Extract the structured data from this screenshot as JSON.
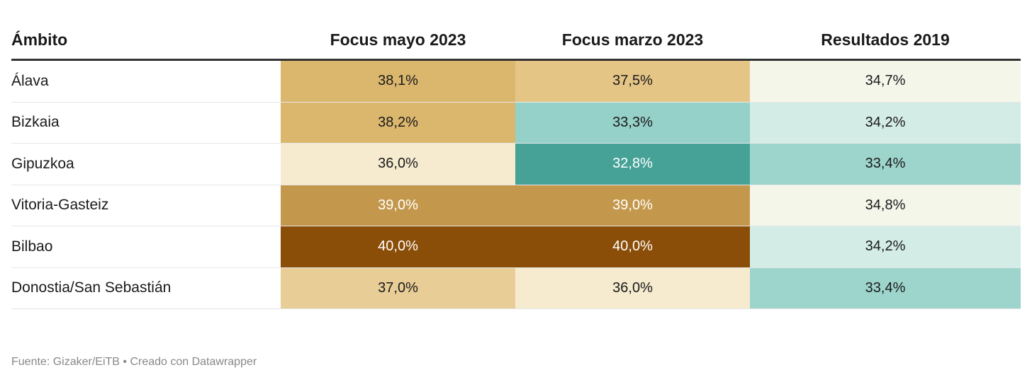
{
  "chart_data": {
    "type": "table",
    "columns": [
      "Ámbito",
      "Focus mayo 2023",
      "Focus marzo 2023",
      "Resultados 2019"
    ],
    "rows": [
      {
        "label": "Álava",
        "values": [
          "38,1%",
          "37,5%",
          "34,7%"
        ],
        "colors": [
          "#dbb76e",
          "#e4c586",
          "#f4f6ea"
        ],
        "text_colors": [
          "#1a1a1a",
          "#1a1a1a",
          "#1a1a1a"
        ]
      },
      {
        "label": "Bizkaia",
        "values": [
          "38,2%",
          "33,3%",
          "34,2%"
        ],
        "colors": [
          "#dbb76e",
          "#95d0c9",
          "#d3ece6"
        ],
        "text_colors": [
          "#1a1a1a",
          "#1a1a1a",
          "#1a1a1a"
        ]
      },
      {
        "label": "Gipuzkoa",
        "values": [
          "36,0%",
          "32,8%",
          "33,4%"
        ],
        "colors": [
          "#f6ebcf",
          "#46a197",
          "#9dd5cd"
        ],
        "text_colors": [
          "#1a1a1a",
          "#ffffff",
          "#1a1a1a"
        ]
      },
      {
        "label": "Vitoria-Gasteiz",
        "values": [
          "39,0%",
          "39,0%",
          "34,8%"
        ],
        "colors": [
          "#c4984c",
          "#c4984c",
          "#f4f6ea"
        ],
        "text_colors": [
          "#ffffff",
          "#ffffff",
          "#1a1a1a"
        ]
      },
      {
        "label": "Bilbao",
        "values": [
          "40,0%",
          "40,0%",
          "34,2%"
        ],
        "colors": [
          "#8b4e08",
          "#8b4e08",
          "#d3ece6"
        ],
        "text_colors": [
          "#ffffff",
          "#ffffff",
          "#1a1a1a"
        ]
      },
      {
        "label": "Donostia/San Sebastián",
        "values": [
          "37,0%",
          "36,0%",
          "33,4%"
        ],
        "colors": [
          "#e8cd96",
          "#f6ebcf",
          "#9dd5cd"
        ],
        "text_colors": [
          "#1a1a1a",
          "#1a1a1a",
          "#1a1a1a"
        ]
      }
    ]
  },
  "footer": "Fuente: Gizaker/EiTB • Creado con Datawrapper"
}
